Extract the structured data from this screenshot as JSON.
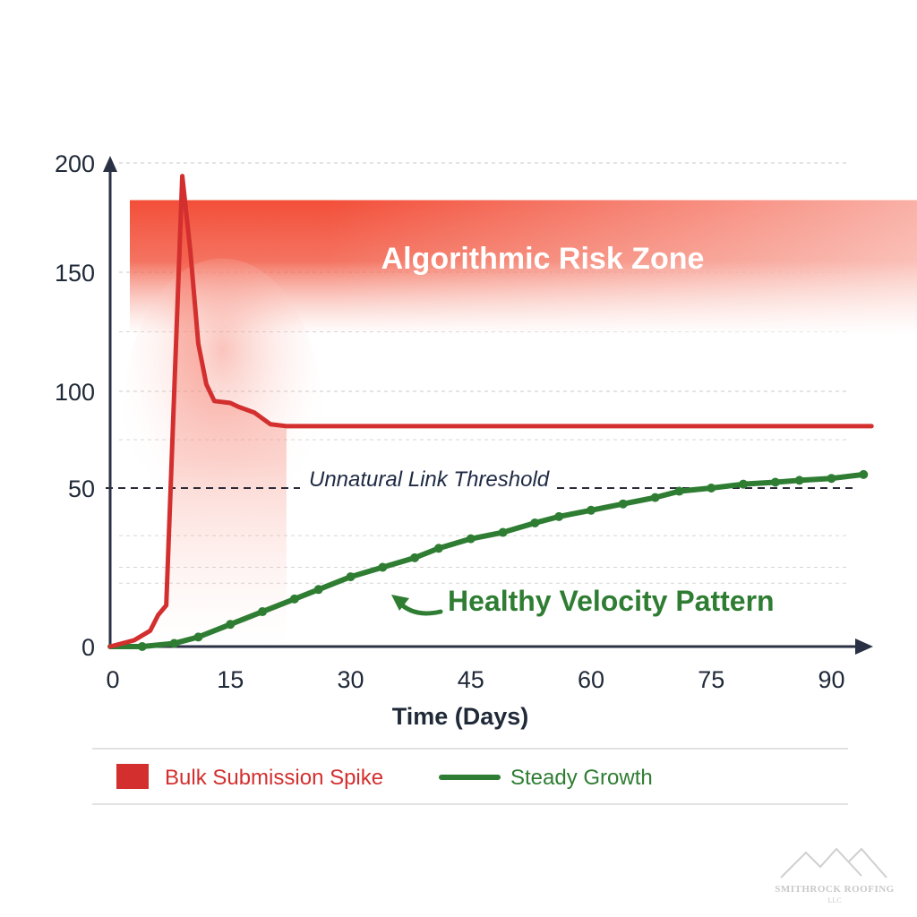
{
  "chart_data": {
    "type": "line",
    "title": "",
    "xlabel": "Time (Days)",
    "ylabel": "",
    "xlim": [
      0,
      95
    ],
    "ylim": [
      0,
      200
    ],
    "x_ticks": [
      0,
      15,
      30,
      45,
      60,
      75,
      90
    ],
    "y_ticks": [
      0,
      50,
      100,
      150,
      200
    ],
    "grid": true,
    "legend_position": "bottom",
    "series": [
      {
        "name": "Bulk Submission Spike",
        "color": "#d32f2f",
        "points": [
          [
            0,
            0
          ],
          [
            3,
            2
          ],
          [
            5,
            5
          ],
          [
            6,
            10
          ],
          [
            7,
            13
          ],
          [
            9,
            194
          ],
          [
            10,
            160
          ],
          [
            11,
            120
          ],
          [
            12,
            103
          ],
          [
            13,
            95
          ],
          [
            15,
            94
          ],
          [
            16,
            92
          ],
          [
            18,
            89
          ],
          [
            20,
            83
          ],
          [
            22,
            82
          ],
          [
            30,
            82
          ],
          [
            45,
            82
          ],
          [
            60,
            82
          ],
          [
            75,
            82
          ],
          [
            90,
            82
          ],
          [
            95,
            82
          ]
        ]
      },
      {
        "name": "Steady Growth",
        "color": "#2e7d32",
        "points": [
          [
            0,
            0
          ],
          [
            4,
            0
          ],
          [
            8,
            1
          ],
          [
            11,
            3
          ],
          [
            15,
            7
          ],
          [
            19,
            11
          ],
          [
            23,
            15
          ],
          [
            26,
            18
          ],
          [
            30,
            22
          ],
          [
            34,
            25
          ],
          [
            38,
            28
          ],
          [
            41,
            31
          ],
          [
            45,
            34
          ],
          [
            49,
            36
          ],
          [
            53,
            39
          ],
          [
            56,
            41
          ],
          [
            60,
            43
          ],
          [
            64,
            45
          ],
          [
            68,
            47
          ],
          [
            71,
            49
          ],
          [
            75,
            50
          ],
          [
            79,
            52
          ],
          [
            83,
            53
          ],
          [
            86,
            54
          ],
          [
            90,
            55
          ],
          [
            94,
            57
          ]
        ]
      }
    ],
    "annotations": {
      "risk_zone": {
        "label": "Algorithmic Risk Zone",
        "y_range": [
          135,
          183
        ]
      },
      "threshold": {
        "label": "Unnatural Link Threshold",
        "y": 65
      },
      "healthy": {
        "label": "Healthy Velocity Pattern"
      }
    }
  },
  "logo": {
    "name": "SMITHROCK ROOFING",
    "sub": "LLC"
  }
}
